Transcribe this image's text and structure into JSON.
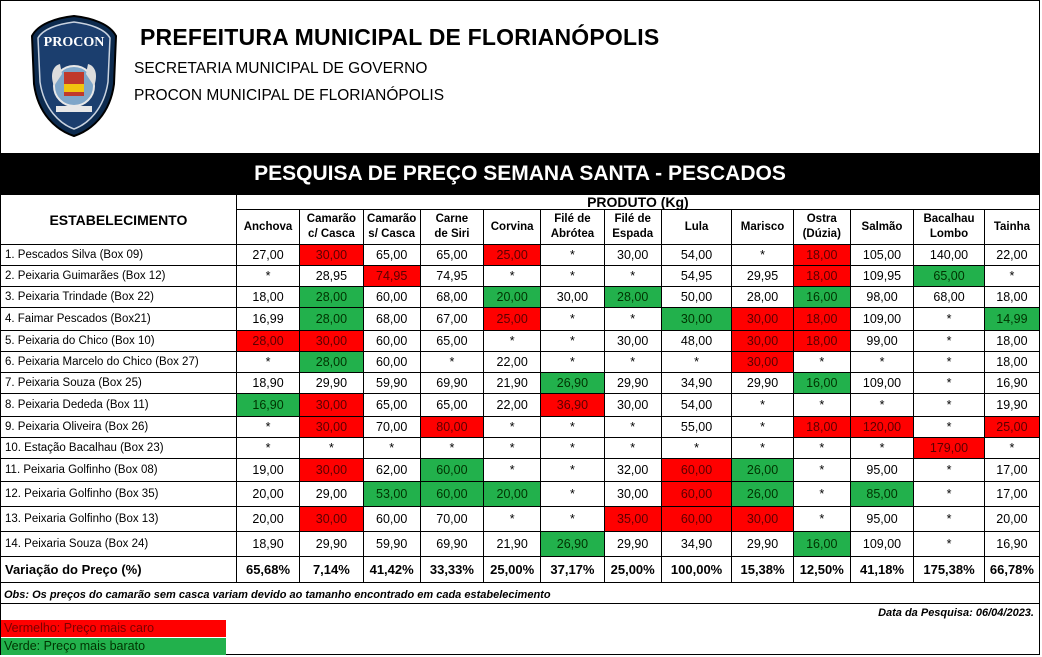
{
  "header": {
    "title": "PREFEITURA MUNICIPAL DE FLORIANÓPOLIS",
    "sub1": "SECRETARIA MUNICIPAL DE GOVERNO",
    "sub2": "PROCON MUNICIPAL DE FLORIANÓPOLIS",
    "logo_text": "PROCON"
  },
  "banner": "PESQUISA DE PREÇO SEMANA SANTA - PESCADOS",
  "table": {
    "est_header": "ESTABELECIMENTO",
    "product_header": "PRODUTO (Kg)",
    "columns": [
      [
        "Anchova"
      ],
      [
        "Camarão",
        "c/ Casca"
      ],
      [
        "Camarão",
        "s/ Casca"
      ],
      [
        "Carne",
        "de Siri"
      ],
      [
        "Corvina"
      ],
      [
        "Filé de",
        "Abrótea"
      ],
      [
        "Filé de",
        "Espada"
      ],
      [
        "Lula"
      ],
      [
        "Marisco"
      ],
      [
        "Ostra",
        "(Dúzia)"
      ],
      [
        "Salmão"
      ],
      [
        "Bacalhau",
        "Lombo"
      ],
      [
        "Tainha"
      ]
    ],
    "rows": [
      {
        "name": "1. Pescados Silva (Box 09)",
        "cells": [
          [
            "27,00",
            ""
          ],
          [
            "30,00",
            "r"
          ],
          [
            "65,00",
            ""
          ],
          [
            "65,00",
            ""
          ],
          [
            "25,00",
            "r"
          ],
          [
            "*",
            ""
          ],
          [
            "30,00",
            ""
          ],
          [
            "54,00",
            ""
          ],
          [
            "*",
            ""
          ],
          [
            "18,00",
            "r"
          ],
          [
            "105,00",
            ""
          ],
          [
            "140,00",
            ""
          ],
          [
            "22,00",
            ""
          ]
        ]
      },
      {
        "name": "2. Peixaria Guimarães (Box 12)",
        "cells": [
          [
            "*",
            ""
          ],
          [
            "28,95",
            ""
          ],
          [
            "74,95",
            "r"
          ],
          [
            "74,95",
            ""
          ],
          [
            "*",
            ""
          ],
          [
            "*",
            ""
          ],
          [
            "*",
            ""
          ],
          [
            "54,95",
            ""
          ],
          [
            "29,95",
            ""
          ],
          [
            "18,00",
            "r"
          ],
          [
            "109,95",
            ""
          ],
          [
            "65,00",
            "g"
          ],
          [
            "*",
            ""
          ]
        ]
      },
      {
        "name": "3. Peixaria Trindade (Box 22)",
        "cells": [
          [
            "18,00",
            ""
          ],
          [
            "28,00",
            "g"
          ],
          [
            "60,00",
            ""
          ],
          [
            "68,00",
            ""
          ],
          [
            "20,00",
            "g"
          ],
          [
            "30,00",
            ""
          ],
          [
            "28,00",
            "g"
          ],
          [
            "50,00",
            ""
          ],
          [
            "28,00",
            ""
          ],
          [
            "16,00",
            "g"
          ],
          [
            "98,00",
            ""
          ],
          [
            "68,00",
            ""
          ],
          [
            "18,00",
            ""
          ]
        ]
      },
      {
        "name": "4. Faimar Pescados (Box21)",
        "cells": [
          [
            "16,99",
            ""
          ],
          [
            "28,00",
            "g"
          ],
          [
            "68,00",
            ""
          ],
          [
            "67,00",
            ""
          ],
          [
            "25,00",
            "r"
          ],
          [
            "*",
            ""
          ],
          [
            "*",
            ""
          ],
          [
            "30,00",
            "g"
          ],
          [
            "30,00",
            "r"
          ],
          [
            "18,00",
            "r"
          ],
          [
            "109,00",
            ""
          ],
          [
            "*",
            ""
          ],
          [
            "14,99",
            "g"
          ]
        ]
      },
      {
        "name": "5. Peixaria do Chico (Box 10)",
        "cells": [
          [
            "28,00",
            "r"
          ],
          [
            "30,00",
            "r"
          ],
          [
            "60,00",
            ""
          ],
          [
            "65,00",
            ""
          ],
          [
            "*",
            ""
          ],
          [
            "*",
            ""
          ],
          [
            "30,00",
            ""
          ],
          [
            "48,00",
            ""
          ],
          [
            "30,00",
            "r"
          ],
          [
            "18,00",
            "r"
          ],
          [
            "99,00",
            ""
          ],
          [
            "*",
            ""
          ],
          [
            "18,00",
            ""
          ]
        ]
      },
      {
        "name": "6. Peixaria Marcelo do Chico (Box 27)",
        "cells": [
          [
            "*",
            ""
          ],
          [
            "28,00",
            "g"
          ],
          [
            "60,00",
            ""
          ],
          [
            "*",
            ""
          ],
          [
            "22,00",
            ""
          ],
          [
            "*",
            ""
          ],
          [
            "*",
            ""
          ],
          [
            "*",
            ""
          ],
          [
            "30,00",
            "r"
          ],
          [
            "*",
            ""
          ],
          [
            "*",
            ""
          ],
          [
            "*",
            ""
          ],
          [
            "18,00",
            ""
          ]
        ]
      },
      {
        "name": "7. Peixaria Souza (Box 25)",
        "cells": [
          [
            "18,90",
            ""
          ],
          [
            "29,90",
            ""
          ],
          [
            "59,90",
            ""
          ],
          [
            "69,90",
            ""
          ],
          [
            "21,90",
            ""
          ],
          [
            "26,90",
            "g"
          ],
          [
            "29,90",
            ""
          ],
          [
            "34,90",
            ""
          ],
          [
            "29,90",
            ""
          ],
          [
            "16,00",
            "g"
          ],
          [
            "109,00",
            ""
          ],
          [
            "*",
            ""
          ],
          [
            "16,90",
            ""
          ]
        ]
      },
      {
        "name": "8. Peixaria Dededa (Box 11)",
        "cells": [
          [
            "16,90",
            "g"
          ],
          [
            "30,00",
            "r"
          ],
          [
            "65,00",
            ""
          ],
          [
            "65,00",
            ""
          ],
          [
            "22,00",
            ""
          ],
          [
            "36,90",
            "r"
          ],
          [
            "30,00",
            ""
          ],
          [
            "54,00",
            ""
          ],
          [
            "*",
            ""
          ],
          [
            "*",
            ""
          ],
          [
            "*",
            ""
          ],
          [
            "*",
            ""
          ],
          [
            "19,90",
            ""
          ]
        ]
      },
      {
        "name": "9. Peixaria Oliveira (Box 26)",
        "cells": [
          [
            "*",
            ""
          ],
          [
            "30,00",
            "r"
          ],
          [
            "70,00",
            ""
          ],
          [
            "80,00",
            "r"
          ],
          [
            "*",
            ""
          ],
          [
            "*",
            ""
          ],
          [
            "*",
            ""
          ],
          [
            "55,00",
            ""
          ],
          [
            "*",
            ""
          ],
          [
            "18,00",
            "r"
          ],
          [
            "120,00",
            "r"
          ],
          [
            "*",
            ""
          ],
          [
            "25,00",
            "r"
          ]
        ]
      },
      {
        "name": "10. Estação Bacalhau (Box 23)",
        "cells": [
          [
            "*",
            ""
          ],
          [
            "*",
            ""
          ],
          [
            "*",
            ""
          ],
          [
            "*",
            ""
          ],
          [
            "*",
            ""
          ],
          [
            "*",
            ""
          ],
          [
            "*",
            ""
          ],
          [
            "*",
            ""
          ],
          [
            "*",
            ""
          ],
          [
            "*",
            ""
          ],
          [
            "*",
            ""
          ],
          [
            "179,00",
            "r"
          ],
          [
            "*",
            ""
          ]
        ]
      },
      {
        "name": "11. Peixaria Golfinho (Box 08)",
        "cells": [
          [
            "19,00",
            ""
          ],
          [
            "30,00",
            "r"
          ],
          [
            "62,00",
            ""
          ],
          [
            "60,00",
            "g"
          ],
          [
            "*",
            ""
          ],
          [
            "*",
            ""
          ],
          [
            "32,00",
            ""
          ],
          [
            "60,00",
            "r"
          ],
          [
            "26,00",
            "g"
          ],
          [
            "*",
            ""
          ],
          [
            "95,00",
            ""
          ],
          [
            "*",
            ""
          ],
          [
            "17,00",
            ""
          ]
        ]
      },
      {
        "name": "12. Peixaria Golfinho (Box 35)",
        "cells": [
          [
            "20,00",
            ""
          ],
          [
            "29,00",
            ""
          ],
          [
            "53,00",
            "g"
          ],
          [
            "60,00",
            "g"
          ],
          [
            "20,00",
            "g"
          ],
          [
            "*",
            ""
          ],
          [
            "30,00",
            ""
          ],
          [
            "60,00",
            "r"
          ],
          [
            "26,00",
            "g"
          ],
          [
            "*",
            ""
          ],
          [
            "85,00",
            "g"
          ],
          [
            "*",
            ""
          ],
          [
            "17,00",
            ""
          ]
        ]
      },
      {
        "name": "13. Peixaria Golfinho (Box 13)",
        "cells": [
          [
            "20,00",
            ""
          ],
          [
            "30,00",
            "r"
          ],
          [
            "60,00",
            ""
          ],
          [
            "70,00",
            ""
          ],
          [
            "*",
            ""
          ],
          [
            "*",
            ""
          ],
          [
            "35,00",
            "r"
          ],
          [
            "60,00",
            "r"
          ],
          [
            "30,00",
            "r"
          ],
          [
            "*",
            ""
          ],
          [
            "95,00",
            ""
          ],
          [
            "*",
            ""
          ],
          [
            "20,00",
            ""
          ]
        ]
      },
      {
        "name": "14. Peixaria Souza (Box 24)",
        "cells": [
          [
            "18,90",
            ""
          ],
          [
            "29,90",
            ""
          ],
          [
            "59,90",
            ""
          ],
          [
            "69,90",
            ""
          ],
          [
            "21,90",
            ""
          ],
          [
            "26,90",
            "g"
          ],
          [
            "29,90",
            ""
          ],
          [
            "34,90",
            ""
          ],
          [
            "29,90",
            ""
          ],
          [
            "16,00",
            "g"
          ],
          [
            "109,00",
            ""
          ],
          [
            "*",
            ""
          ],
          [
            "16,90",
            ""
          ]
        ]
      }
    ],
    "variation_label": "Variação do Preço (%)",
    "variation": [
      "65,68%",
      "7,14%",
      "41,42%",
      "33,33%",
      "25,00%",
      "37,17%",
      "25,00%",
      "100,00%",
      "15,38%",
      "12,50%",
      "41,18%",
      "175,38%",
      "66,78%"
    ]
  },
  "obs": "Obs: Os preços do camarão sem casca variam devido ao tamanho encontrado em cada estabelecimento",
  "date": "Data da Pesquisa:  06/04/2023.",
  "legend": {
    "red": "Vermelho: Preço mais caro",
    "green": "Verde: Preço mais barato"
  },
  "colors": {
    "red": "#ff0000",
    "green": "#22b14c"
  }
}
